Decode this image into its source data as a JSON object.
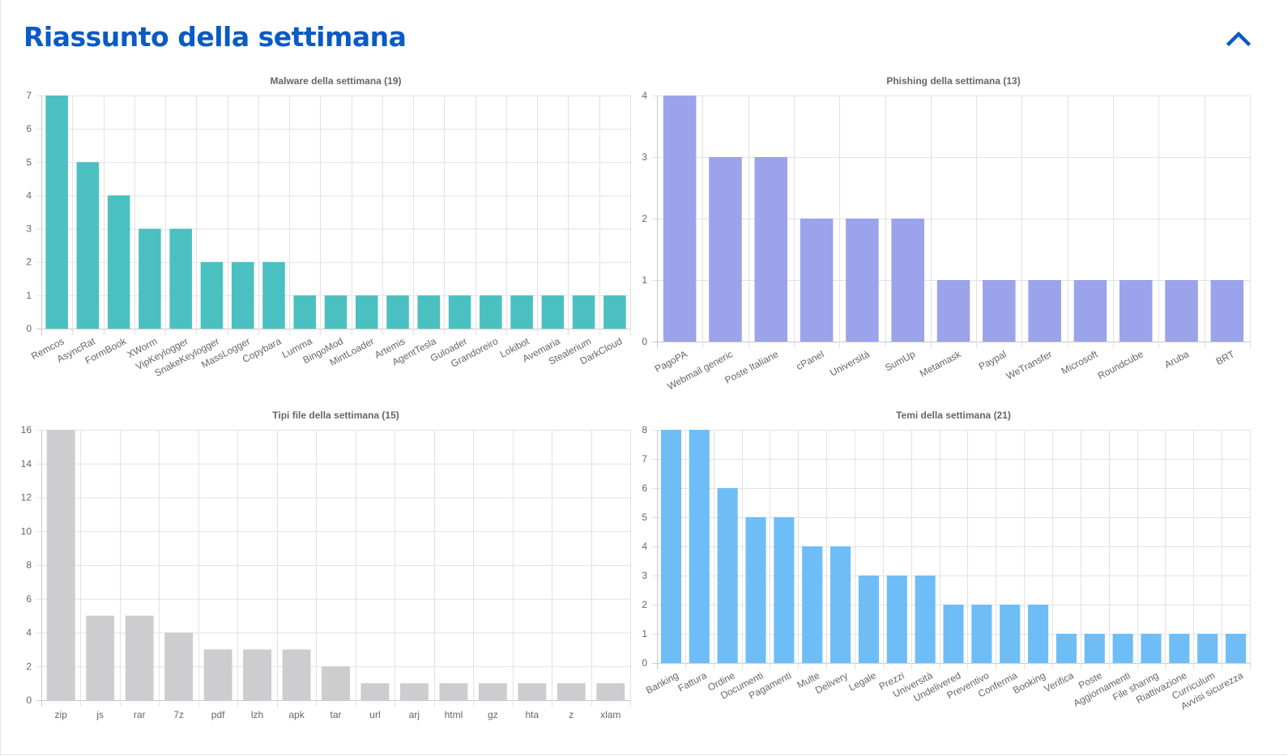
{
  "header": {
    "title": "Riassunto della settimana",
    "collapse_icon": "chevron-up-icon",
    "accent_color": "#0a5bc4"
  },
  "chart_data": [
    {
      "type": "bar",
      "title": "Malware della settimana (19)",
      "xlabel": "",
      "ylabel": "",
      "ylim": [
        0,
        7
      ],
      "yticks": [
        0,
        1,
        2,
        3,
        4,
        5,
        6,
        7
      ],
      "grid": true,
      "color": "#4bc0c0",
      "label_rotation": "angled",
      "categories": [
        "Remcos",
        "AsyncRat",
        "FormBook",
        "XWorm",
        "VipKeylogger",
        "SnakeKeylogger",
        "MassLogger",
        "Copybara",
        "Lumma",
        "BingoMod",
        "MintLoader",
        "Artemis",
        "AgentTesla",
        "Guloader",
        "Grandoreiro",
        "Lokibot",
        "Avemaria",
        "Stealerium",
        "DarkCloud"
      ],
      "values": [
        7,
        5,
        4,
        3,
        3,
        2,
        2,
        2,
        1,
        1,
        1,
        1,
        1,
        1,
        1,
        1,
        1,
        1,
        1
      ]
    },
    {
      "type": "bar",
      "title": "Phishing della settimana (13)",
      "xlabel": "",
      "ylabel": "",
      "ylim": [
        0,
        4
      ],
      "yticks": [
        0,
        1,
        2,
        3,
        4
      ],
      "grid": true,
      "color": "#9ba3ea",
      "label_rotation": "angled",
      "categories": [
        "PagoPA",
        "Webmail generic",
        "Poste Italiane",
        "cPanel",
        "Università",
        "SumUp",
        "Metamask",
        "Paypal",
        "WeTransfer",
        "Microsoft",
        "Roundcube",
        "Aruba",
        "BRT"
      ],
      "values": [
        4,
        3,
        3,
        2,
        2,
        2,
        1,
        1,
        1,
        1,
        1,
        1,
        1
      ]
    },
    {
      "type": "bar",
      "title": "Tipi file della settimana (15)",
      "xlabel": "",
      "ylabel": "",
      "ylim": [
        0,
        16
      ],
      "yticks": [
        0,
        2,
        4,
        6,
        8,
        10,
        12,
        14,
        16
      ],
      "grid": true,
      "color": "#cdcdcf",
      "label_rotation": "horizontal",
      "categories": [
        "zip",
        "js",
        "rar",
        "7z",
        "pdf",
        "lzh",
        "apk",
        "tar",
        "url",
        "arj",
        "html",
        "gz",
        "hta",
        "z",
        "xlam"
      ],
      "values": [
        16,
        5,
        5,
        4,
        3,
        3,
        3,
        2,
        1,
        1,
        1,
        1,
        1,
        1,
        1
      ]
    },
    {
      "type": "bar",
      "title": "Temi della settimana (21)",
      "xlabel": "",
      "ylabel": "",
      "ylim": [
        0,
        8
      ],
      "yticks": [
        0,
        1,
        2,
        3,
        4,
        5,
        6,
        7,
        8
      ],
      "grid": true,
      "color": "#6ebdf6",
      "label_rotation": "angled",
      "categories": [
        "Banking",
        "Fattura",
        "Ordine",
        "Documenti",
        "Pagamenti",
        "Multe",
        "Delivery",
        "Legale",
        "Prezzi",
        "Università",
        "Undelivered",
        "Preventivo",
        "Conferma",
        "Booking",
        "Verifica",
        "Poste",
        "Aggiornamenti",
        "File sharing",
        "Riattivazione",
        "Curriculum",
        "Avvisi sicurezza"
      ],
      "values": [
        8,
        8,
        6,
        5,
        5,
        4,
        4,
        3,
        3,
        3,
        2,
        2,
        2,
        2,
        1,
        1,
        1,
        1,
        1,
        1,
        1
      ]
    }
  ]
}
